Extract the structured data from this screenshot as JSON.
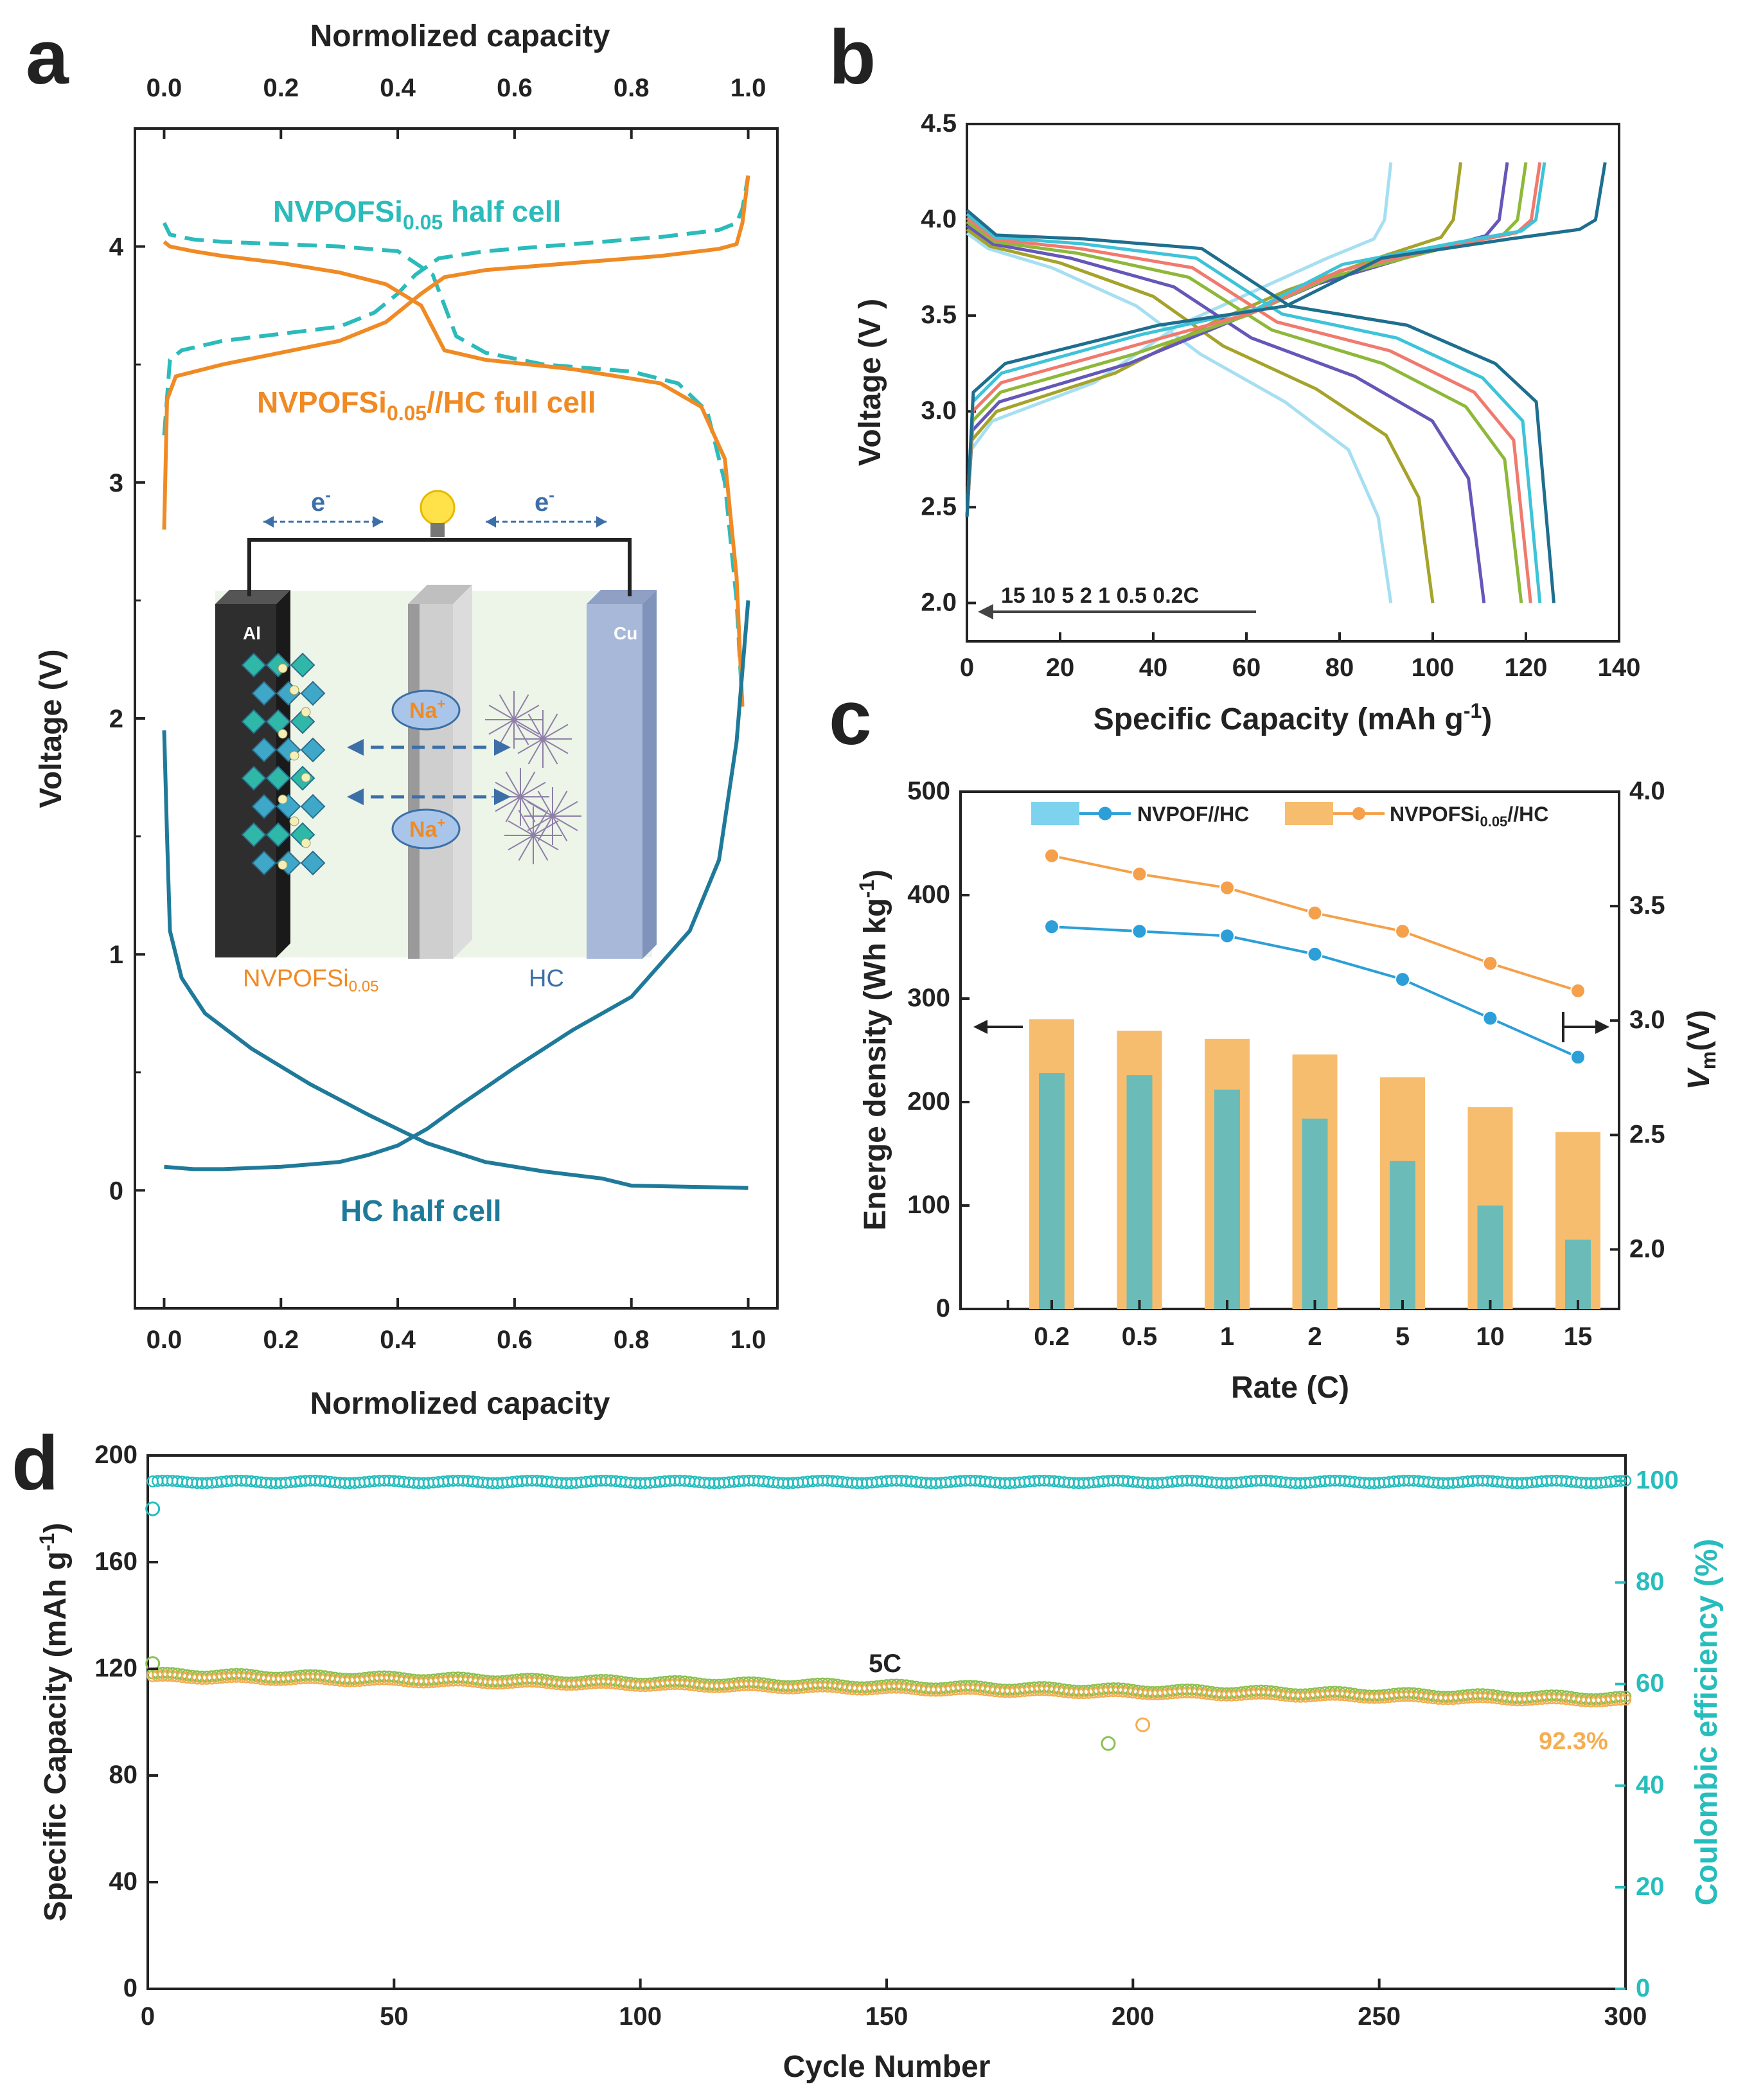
{
  "colors": {
    "orange": "#F08A24",
    "teal": "#2BBBBB",
    "darkblue": "#1F7A9A",
    "lightblue": "#7DD3EE",
    "barorange": "#F7BD6E",
    "barteal": "#6BBCB8",
    "lineblue": "#2C9FD8",
    "lineorange": "#F5A04A",
    "d_orange": "#F5AE52",
    "d_green": "#8CC152",
    "d_teal": "#27BDBD"
  },
  "panel_a": {
    "letter": "a",
    "top_axis_title": "Normolized capacity",
    "bottom_axis_title": "Normolized capacity",
    "ylabel": "Voltage (V)",
    "x_ticks": [
      "0.0",
      "0.2",
      "0.4",
      "0.6",
      "0.8",
      "1.0"
    ],
    "y_ticks": [
      "0",
      "1",
      "2",
      "3",
      "4"
    ],
    "labels": {
      "half_cell_main": "NVPOFSi",
      "half_cell_sub": "0.05",
      "half_cell_tail": " half cell",
      "full_cell_main": "NVPOFSi",
      "full_cell_sub": "0.05",
      "full_cell_tail": "//HC full cell",
      "hc_half_cell": "HC half cell"
    },
    "schematic": {
      "electron_left": "e",
      "electron_right": "e",
      "electron_sup": "-",
      "al": "Al",
      "cu": "Cu",
      "na_1": "Na",
      "na_2": "Na",
      "na_sup": "+",
      "cathode_main": "NVPOFSi",
      "cathode_sub": "0.05",
      "anode": "HC"
    },
    "chart_data": {
      "type": "line",
      "xlim": [
        -0.05,
        1.05
      ],
      "ylim": [
        -0.5,
        4.5
      ],
      "series": [
        {
          "name": "NVPOFSi0.05 half cell (charge)",
          "style": "dashed",
          "x": [
            0,
            0.01,
            0.03,
            0.1,
            0.2,
            0.3,
            0.36,
            0.4,
            0.43,
            0.47,
            0.55,
            0.7,
            0.85,
            0.95,
            0.98,
            0.99,
            1.0
          ],
          "y": [
            3.2,
            3.52,
            3.56,
            3.6,
            3.63,
            3.66,
            3.72,
            3.8,
            3.88,
            3.95,
            3.98,
            4.01,
            4.04,
            4.07,
            4.1,
            4.16,
            4.3
          ]
        },
        {
          "name": "NVPOFSi0.05 half cell (discharge)",
          "style": "dashed",
          "x": [
            0,
            0.01,
            0.05,
            0.1,
            0.2,
            0.3,
            0.4,
            0.46,
            0.5,
            0.55,
            0.65,
            0.8,
            0.88,
            0.93,
            0.96,
            0.98,
            0.99
          ],
          "y": [
            4.1,
            4.05,
            4.03,
            4.02,
            4.01,
            4.0,
            3.98,
            3.88,
            3.62,
            3.55,
            3.5,
            3.47,
            3.42,
            3.3,
            3.0,
            2.5,
            2.05
          ]
        },
        {
          "name": "NVPOFSi0.05//HC full cell (charge)",
          "style": "solid",
          "x": [
            0,
            0.005,
            0.02,
            0.1,
            0.2,
            0.3,
            0.38,
            0.44,
            0.48,
            0.55,
            0.7,
            0.85,
            0.95,
            0.98,
            0.99,
            1.0
          ],
          "y": [
            2.8,
            3.35,
            3.45,
            3.5,
            3.55,
            3.6,
            3.68,
            3.8,
            3.87,
            3.9,
            3.93,
            3.96,
            3.99,
            4.01,
            4.1,
            4.3
          ]
        },
        {
          "name": "NVPOFSi0.05//HC full cell (discharge)",
          "style": "solid",
          "x": [
            0,
            0.01,
            0.05,
            0.1,
            0.2,
            0.3,
            0.38,
            0.44,
            0.48,
            0.55,
            0.7,
            0.85,
            0.92,
            0.96,
            0.98,
            0.99
          ],
          "y": [
            4.02,
            4.0,
            3.98,
            3.96,
            3.93,
            3.89,
            3.84,
            3.75,
            3.56,
            3.52,
            3.48,
            3.42,
            3.32,
            3.1,
            2.6,
            2.05
          ]
        },
        {
          "name": "HC half cell (discharge)",
          "style": "solid",
          "x": [
            0,
            0.005,
            0.01,
            0.03,
            0.07,
            0.15,
            0.25,
            0.35,
            0.45,
            0.55,
            0.65,
            0.75,
            0.8,
            0.9,
            1.0
          ],
          "y": [
            1.95,
            1.5,
            1.1,
            0.9,
            0.75,
            0.6,
            0.45,
            0.32,
            0.2,
            0.12,
            0.08,
            0.05,
            0.02,
            0.015,
            0.01
          ]
        },
        {
          "name": "HC half cell (charge)",
          "style": "solid",
          "x": [
            0,
            0.05,
            0.1,
            0.2,
            0.3,
            0.35,
            0.4,
            0.45,
            0.5,
            0.6,
            0.7,
            0.8,
            0.9,
            0.95,
            0.98,
            1.0
          ],
          "y": [
            0.1,
            0.09,
            0.09,
            0.1,
            0.12,
            0.15,
            0.19,
            0.26,
            0.35,
            0.52,
            0.68,
            0.82,
            1.1,
            1.4,
            1.9,
            2.5
          ]
        }
      ]
    }
  },
  "panel_b": {
    "letter": "b",
    "xlabel": "Specific Capacity (mAh g",
    "xlabel_sup": "-1",
    "xlabel_tail": ")",
    "ylabel": "Voltage (V )",
    "rate_legend": "15  10  5  2  1  0.5  0.2C",
    "x_ticks": [
      "0",
      "20",
      "40",
      "60",
      "80",
      "100",
      "120",
      "140"
    ],
    "y_ticks": [
      "2.0",
      "2.5",
      "3.0",
      "3.5",
      "4.0",
      "4.5"
    ],
    "chart_data": {
      "type": "line",
      "xlim": [
        0,
        140
      ],
      "ylim": [
        1.8,
        4.5
      ],
      "series": [
        {
          "name": "15C",
          "color": "#A6DFF2",
          "cmax": 91,
          "dmax": 91
        },
        {
          "name": "10C",
          "color": "#A5A32A",
          "cmax": 106,
          "dmax": 100
        },
        {
          "name": "5C",
          "color": "#6457B8",
          "cmax": 116,
          "dmax": 111
        },
        {
          "name": "2C",
          "color": "#8EB83A",
          "cmax": 120,
          "dmax": 119
        },
        {
          "name": "1C",
          "color": "#F07A6E",
          "cmax": 123,
          "dmax": 121
        },
        {
          "name": "0.5C",
          "color": "#3EC3D8",
          "cmax": 124,
          "dmax": 123
        },
        {
          "name": "0.2C",
          "color": "#1E6E8E",
          "cmax": 137,
          "dmax": 126
        }
      ]
    }
  },
  "panel_c": {
    "letter": "c",
    "xlabel": "Rate (C)",
    "ylabel_left": "Energe density (Wh kg",
    "ylabel_left_sup": "-1",
    "ylabel_left_tail": ")",
    "ylabel_right_main": "V",
    "ylabel_right_sub": "m",
    "ylabel_right_tail": "(V)",
    "legend_1": "NVPOF//HC",
    "legend_2_main": "NVPOFSi",
    "legend_2_sub": "0.05",
    "legend_2_tail": "//HC",
    "y_ticks_left": [
      "0",
      "100",
      "200",
      "300",
      "400",
      "500"
    ],
    "y_ticks_right": [
      "2.0",
      "2.5",
      "3.0",
      "3.5",
      "4.0"
    ],
    "chart_data": {
      "type": "bar",
      "categories": [
        "0.2",
        "0.5",
        "1",
        "2",
        "5",
        "10",
        "15"
      ],
      "ylim_left": [
        0,
        500
      ],
      "ylim_right": [
        1.74,
        4.0
      ],
      "series": [
        {
          "name": "NVPOFSi0.05//HC energy density",
          "axis": "left",
          "values": [
            280,
            269,
            261,
            246,
            224,
            195,
            171
          ]
        },
        {
          "name": "NVPOF//HC energy density",
          "axis": "left",
          "values": [
            228,
            226,
            212,
            184,
            143,
            100,
            67
          ]
        },
        {
          "name": "NVPOFSi0.05//HC Vm",
          "axis": "right",
          "values": [
            3.72,
            3.64,
            3.58,
            3.47,
            3.39,
            3.25,
            3.13
          ]
        },
        {
          "name": "NVPOF//HC Vm",
          "axis": "right",
          "values": [
            3.41,
            3.39,
            3.37,
            3.29,
            3.18,
            3.01,
            2.84
          ]
        }
      ]
    }
  },
  "panel_d": {
    "letter": "d",
    "xlabel": "Cycle Number",
    "ylabel_left": "Specific Capacity (mAh g",
    "ylabel_left_sup": "-1",
    "ylabel_left_tail": ")",
    "ylabel_right": "Coulombic efficiency (%)",
    "rate_label": "5C",
    "retention_label": "92.3%",
    "x_ticks": [
      "0",
      "50",
      "100",
      "150",
      "200",
      "250",
      "300"
    ],
    "y_ticks_left": [
      "0",
      "40",
      "80",
      "120",
      "160",
      "200"
    ],
    "y_ticks_right": [
      "0",
      "20",
      "40",
      "60",
      "80",
      "100"
    ],
    "chart_data": {
      "type": "scatter",
      "xlim": [
        0,
        300
      ],
      "ylim_left": [
        0,
        200
      ],
      "ylim_right": [
        0,
        105
      ],
      "series": [
        {
          "name": "Discharge capacity",
          "axis": "left",
          "start": 117,
          "end": 108,
          "cycles": 300,
          "outliers": [
            [
              1,
              122
            ],
            [
              195,
              92
            ]
          ]
        },
        {
          "name": "Charge capacity",
          "axis": "left",
          "start": 118,
          "end": 109,
          "cycles": 300,
          "outliers": [
            [
              202,
              99
            ]
          ]
        },
        {
          "name": "Coulombic efficiency",
          "axis": "right",
          "value": 99.8,
          "cycles": 300,
          "outliers": [
            [
              1,
              94.5
            ]
          ]
        }
      ]
    }
  }
}
